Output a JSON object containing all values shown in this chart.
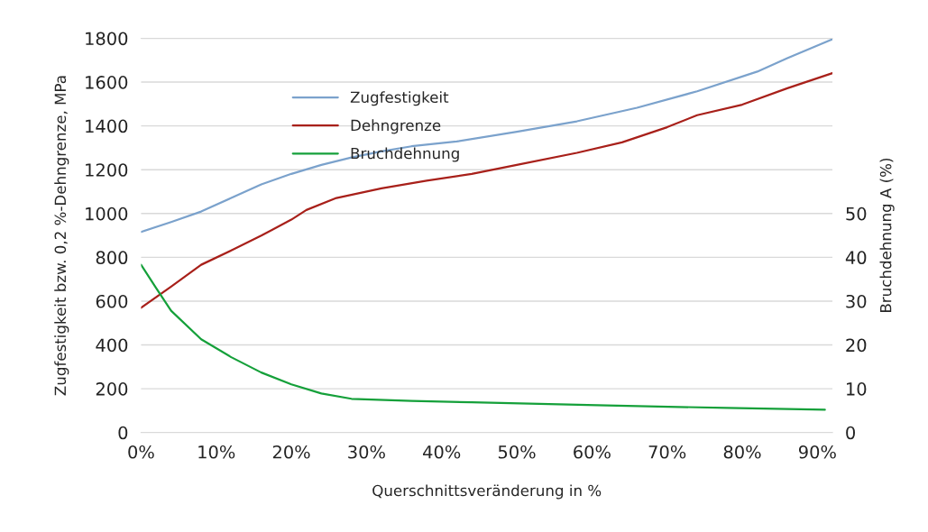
{
  "chart_data": {
    "type": "line",
    "xlabel": "Querschnittsveränderung in %",
    "ylabel": "Zugfestigkeit bzw. 0,2 %-Dehngrenze, MPa",
    "y2label": "Bruchdehnung A (%)",
    "xlim": [
      0,
      92
    ],
    "xticks": [
      {
        "value": 0,
        "label": "0%"
      },
      {
        "value": 10,
        "label": "10%"
      },
      {
        "value": 20,
        "label": "20%"
      },
      {
        "value": 30,
        "label": "30%"
      },
      {
        "value": 40,
        "label": "40%"
      },
      {
        "value": 50,
        "label": "50%"
      },
      {
        "value": 60,
        "label": "60%"
      },
      {
        "value": 70,
        "label": "70%"
      },
      {
        "value": 80,
        "label": "80%"
      },
      {
        "value": 90,
        "label": "90%"
      }
    ],
    "ylim": [
      0,
      1800
    ],
    "yticks": [
      0,
      200,
      400,
      600,
      800,
      1000,
      1200,
      1400,
      1600,
      1800
    ],
    "y2lim": [
      0,
      90
    ],
    "y2ticks": [
      0,
      10,
      20,
      30,
      40,
      50
    ],
    "grid": "y",
    "legend": "top left",
    "series": [
      {
        "name": "Zugfestigkeit",
        "color": "#7ba2cc",
        "x": [
          0,
          4,
          8,
          12,
          16,
          20,
          24,
          28,
          32,
          36,
          42,
          50,
          58,
          66,
          74,
          82,
          86,
          92
        ],
        "values": [
          916,
          961,
          1009,
          1071,
          1133,
          1181,
          1222,
          1256,
          1284,
          1307,
          1329,
          1373,
          1421,
          1483,
          1558,
          1648,
          1709,
          1796
        ]
      },
      {
        "name": "Dehngrenze",
        "color": "#a8201a",
        "x": [
          0,
          4,
          8,
          12,
          16,
          20,
          22,
          26,
          32,
          38,
          44,
          50,
          58,
          64,
          70,
          74,
          80,
          86,
          92
        ],
        "values": [
          570,
          666,
          766,
          831,
          899,
          972,
          1016,
          1071,
          1115,
          1150,
          1181,
          1222,
          1277,
          1325,
          1394,
          1449,
          1497,
          1572,
          1641
        ]
      },
      {
        "name": "Bruchdehnung",
        "color": "#15a03a",
        "axis": "y2",
        "x": [
          0,
          2,
          4,
          8,
          12,
          16,
          20,
          24,
          28,
          36,
          44,
          62,
          78,
          91
        ],
        "values": [
          38.3,
          33.0,
          27.8,
          21.3,
          17.2,
          13.7,
          11.0,
          8.9,
          7.7,
          7.2,
          6.9,
          6.2,
          5.6,
          5.2
        ]
      }
    ]
  }
}
